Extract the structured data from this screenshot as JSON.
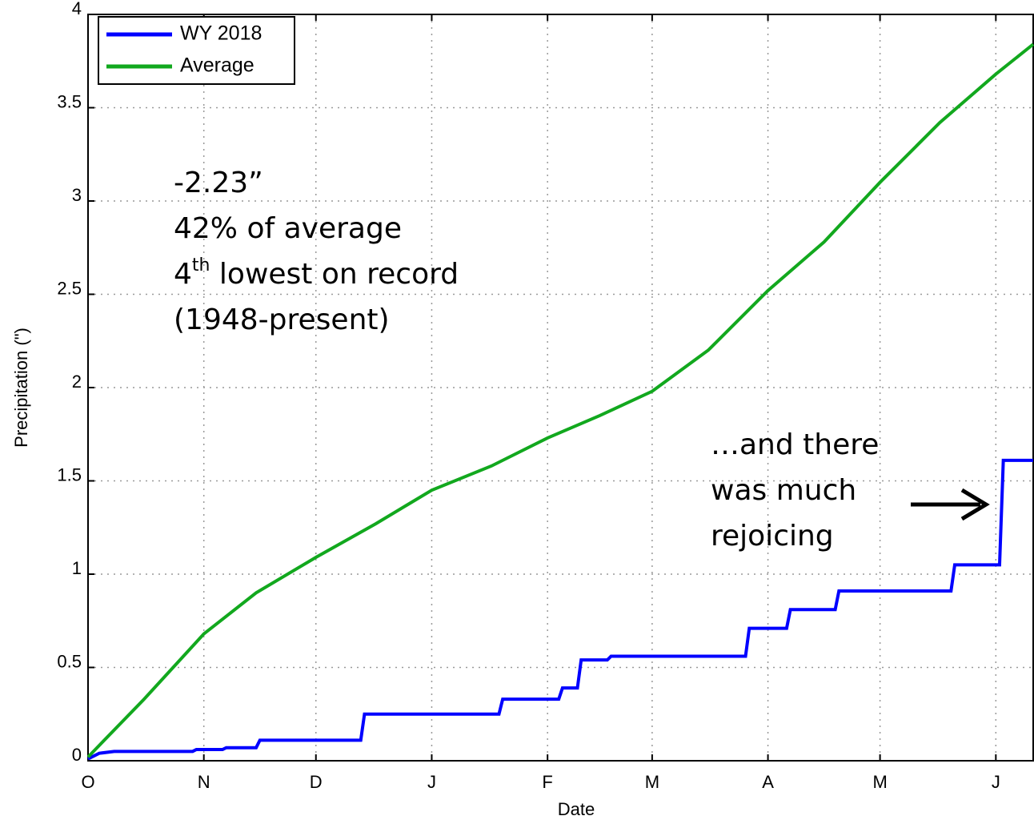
{
  "chart_data": {
    "type": "line",
    "xlabel": "Date",
    "ylabel": "Precipitation (\")",
    "xlim": [
      0,
      253
    ],
    "ylim": [
      0,
      4
    ],
    "xticks": [
      {
        "value": 0,
        "label": "O"
      },
      {
        "value": 31,
        "label": "N"
      },
      {
        "value": 61,
        "label": "D"
      },
      {
        "value": 92,
        "label": "J"
      },
      {
        "value": 123,
        "label": "F"
      },
      {
        "value": 151,
        "label": "M"
      },
      {
        "value": 182,
        "label": "A"
      },
      {
        "value": 212,
        "label": "M"
      },
      {
        "value": 243,
        "label": "J"
      }
    ],
    "yticks": [
      0,
      0.5,
      1,
      1.5,
      2,
      2.5,
      3,
      3.5,
      4
    ],
    "grid": true,
    "legend": "upper left",
    "series": [
      {
        "name": "WY 2018",
        "color": "#0000ff",
        "x": [
          0,
          3,
          7,
          28,
          29,
          36,
          37,
          45,
          46,
          73,
          74,
          110,
          111,
          126,
          127,
          131,
          132,
          139,
          140,
          176,
          177,
          187,
          188,
          200,
          201,
          231,
          232,
          244,
          245,
          253
        ],
        "values": [
          0.01,
          0.04,
          0.05,
          0.05,
          0.06,
          0.06,
          0.07,
          0.07,
          0.11,
          0.11,
          0.25,
          0.25,
          0.33,
          0.33,
          0.39,
          0.39,
          0.54,
          0.54,
          0.56,
          0.56,
          0.71,
          0.71,
          0.81,
          0.81,
          0.91,
          0.91,
          1.05,
          1.05,
          1.61,
          1.61
        ]
      },
      {
        "name": "Average",
        "color": "#12a81e",
        "x": [
          0,
          15,
          31,
          45,
          61,
          77,
          92,
          108,
          123,
          137,
          151,
          166,
          182,
          197,
          212,
          228,
          243,
          253
        ],
        "values": [
          0.02,
          0.33,
          0.68,
          0.9,
          1.09,
          1.27,
          1.45,
          1.58,
          1.73,
          1.85,
          1.98,
          2.2,
          2.52,
          2.78,
          3.1,
          3.42,
          3.68,
          3.84
        ]
      }
    ],
    "annotations": [
      {
        "lines": [
          "-2.23”",
          "42% of average",
          {
            "text": "4",
            "sup": "th",
            "rest": " lowest on record"
          },
          "(1948-present)"
        ]
      },
      {
        "lines": [
          "…and there",
          "was much",
          "rejoicing"
        ]
      }
    ]
  }
}
